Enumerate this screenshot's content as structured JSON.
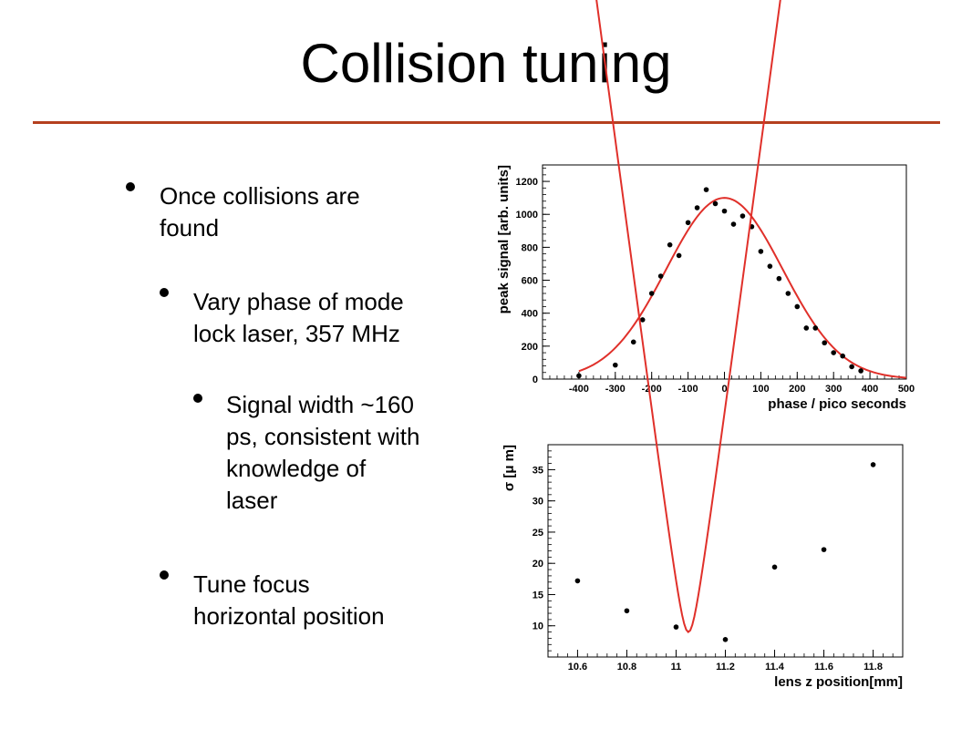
{
  "slide": {
    "title": "Collision tuning",
    "bullets": [
      {
        "level": 1,
        "lines": [
          "Once collisions are",
          "found"
        ]
      },
      {
        "level": 2,
        "lines": [
          "Vary phase of mode",
          "lock laser, 357 MHz"
        ]
      },
      {
        "level": 3,
        "lines": [
          "Signal width ~160",
          "ps, consistent with",
          "knowledge of",
          "laser"
        ]
      },
      {
        "level": 2,
        "lines": [
          "Tune focus",
          "horizontal position"
        ]
      }
    ],
    "accent_color": "#b5401f"
  },
  "chart_data": [
    {
      "type": "scatter",
      "xlabel": "phase / pico seconds",
      "ylabel": "peak signal [arb. units]",
      "xlim": [
        -500,
        500
      ],
      "ylim": [
        0,
        1300
      ],
      "xticks": [
        -400,
        -300,
        -200,
        -100,
        0,
        100,
        200,
        300,
        400,
        500
      ],
      "yticks": [
        0,
        200,
        400,
        600,
        800,
        1000,
        1200
      ],
      "marker_color": "#000000",
      "fit_color": "#e0302a",
      "points": [
        {
          "x": -400,
          "y": 20
        },
        {
          "x": -300,
          "y": 85
        },
        {
          "x": -250,
          "y": 225
        },
        {
          "x": -225,
          "y": 360
        },
        {
          "x": -200,
          "y": 520
        },
        {
          "x": -175,
          "y": 625
        },
        {
          "x": -150,
          "y": 815
        },
        {
          "x": -125,
          "y": 750
        },
        {
          "x": -100,
          "y": 950
        },
        {
          "x": -75,
          "y": 1040
        },
        {
          "x": -50,
          "y": 1150
        },
        {
          "x": -25,
          "y": 1065
        },
        {
          "x": 0,
          "y": 1020
        },
        {
          "x": 25,
          "y": 940
        },
        {
          "x": 50,
          "y": 990
        },
        {
          "x": 75,
          "y": 925
        },
        {
          "x": 100,
          "y": 775
        },
        {
          "x": 125,
          "y": 685
        },
        {
          "x": 150,
          "y": 610
        },
        {
          "x": 175,
          "y": 520
        },
        {
          "x": 200,
          "y": 440
        },
        {
          "x": 225,
          "y": 310
        },
        {
          "x": 250,
          "y": 310
        },
        {
          "x": 275,
          "y": 220
        },
        {
          "x": 300,
          "y": 160
        },
        {
          "x": 325,
          "y": 140
        },
        {
          "x": 350,
          "y": 75
        },
        {
          "x": 375,
          "y": 50
        }
      ],
      "fit": {
        "model": "gaussian",
        "amplitude": 1100,
        "mean": 0,
        "sigma": 160,
        "x_range": [
          -400,
          500
        ]
      }
    },
    {
      "type": "scatter",
      "xlabel": "lens z position[mm]",
      "ylabel": "σ [μ m]",
      "xlim": [
        10.48,
        11.92
      ],
      "ylim": [
        5,
        39
      ],
      "xticks": [
        10.6,
        10.8,
        11,
        11.2,
        11.4,
        11.6,
        11.8
      ],
      "xtick_labels": [
        "10.6",
        "10.8",
        "11",
        "11.2",
        "11.4",
        "11.6",
        "11.8"
      ],
      "yticks": [
        10,
        15,
        20,
        25,
        30,
        35
      ],
      "marker_color": "#000000",
      "fit_color": "#e0302a",
      "points": [
        {
          "x": 10.6,
          "y": 17.2
        },
        {
          "x": 10.8,
          "y": 12.4
        },
        {
          "x": 11.0,
          "y": 9.8
        },
        {
          "x": 11.2,
          "y": 7.8
        },
        {
          "x": 11.4,
          "y": 19.4
        },
        {
          "x": 11.6,
          "y": 22.2
        },
        {
          "x": 11.8,
          "y": 35.8
        }
      ],
      "fit": {
        "model": "beam_waist",
        "w0": 9.0,
        "z0": 11.05,
        "coef": 1070,
        "x_range": [
          10.48,
          11.8
        ]
      }
    }
  ]
}
